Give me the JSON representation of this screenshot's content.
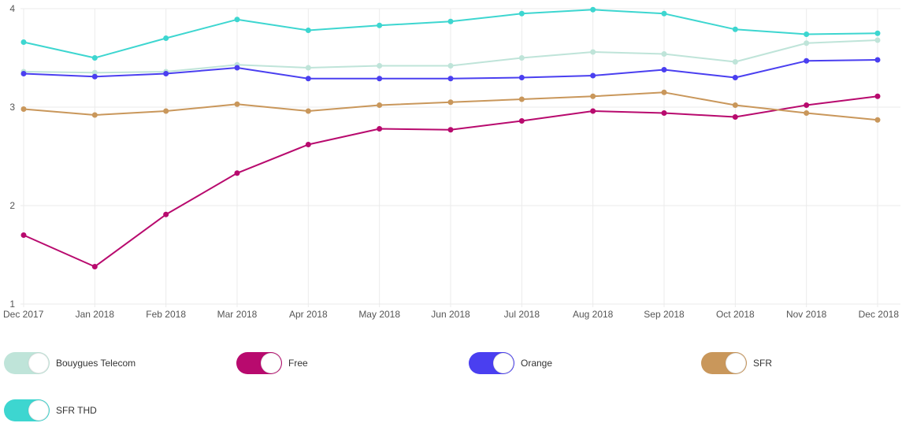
{
  "chart_data": {
    "type": "line",
    "title": "",
    "xlabel": "",
    "ylabel": "",
    "ylim": [
      1,
      4
    ],
    "yticks": [
      "1",
      "2",
      "3",
      "4"
    ],
    "grid": true,
    "legend_position": "bottom",
    "categories": [
      "Dec 2017",
      "Jan 2018",
      "Feb 2018",
      "Mar 2018",
      "Apr 2018",
      "May 2018",
      "Jun 2018",
      "Jul 2018",
      "Aug 2018",
      "Sep 2018",
      "Oct 2018",
      "Nov 2018",
      "Dec 2018"
    ],
    "series": [
      {
        "name": "Bouygues Telecom",
        "color": "#bfe4d9",
        "values": [
          3.36,
          3.35,
          3.36,
          3.43,
          3.4,
          3.42,
          3.42,
          3.5,
          3.56,
          3.54,
          3.46,
          3.65,
          3.68
        ]
      },
      {
        "name": "Free",
        "color": "#b80a6e",
        "values": [
          1.7,
          1.38,
          1.91,
          2.33,
          2.62,
          2.78,
          2.77,
          2.86,
          2.96,
          2.94,
          2.9,
          3.02,
          3.11
        ]
      },
      {
        "name": "Orange",
        "color": "#4a3ff0",
        "values": [
          3.34,
          3.31,
          3.34,
          3.4,
          3.29,
          3.29,
          3.29,
          3.3,
          3.32,
          3.38,
          3.3,
          3.47,
          3.48
        ]
      },
      {
        "name": "SFR",
        "color": "#c9975b",
        "values": [
          2.98,
          2.92,
          2.96,
          3.03,
          2.96,
          3.02,
          3.05,
          3.08,
          3.11,
          3.15,
          3.02,
          2.94,
          2.87
        ]
      },
      {
        "name": "SFR THD",
        "color": "#3dd6d0",
        "values": [
          3.66,
          3.5,
          3.7,
          3.89,
          3.78,
          3.83,
          3.87,
          3.95,
          3.99,
          3.95,
          3.79,
          3.74,
          3.75
        ]
      }
    ]
  },
  "legend": {
    "items": [
      {
        "label": "Bouygues Telecom",
        "color": "#bfe4d9",
        "enabled": true
      },
      {
        "label": "Free",
        "color": "#b80a6e",
        "enabled": true
      },
      {
        "label": "Orange",
        "color": "#4a3ff0",
        "enabled": true
      },
      {
        "label": "SFR",
        "color": "#c9975b",
        "enabled": true
      },
      {
        "label": "SFR THD",
        "color": "#3dd6d0",
        "enabled": true
      }
    ]
  }
}
